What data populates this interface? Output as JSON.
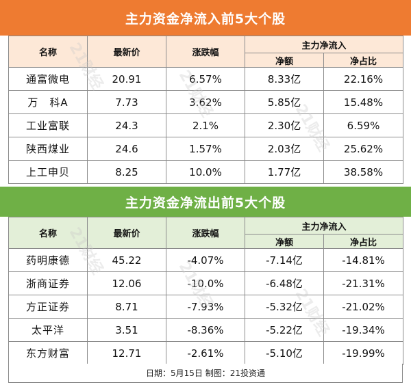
{
  "inflow": {
    "title": "主力资金净流入前5大个股",
    "headers": {
      "name": "名称",
      "price": "最新价",
      "change": "涨跌幅",
      "group": "主力净流入",
      "net": "净额",
      "ratio": "净占比"
    },
    "rows": [
      {
        "name": "通富微电",
        "price": "20.91",
        "change": "6.57%",
        "net": "8.33亿",
        "ratio": "22.16%"
      },
      {
        "name": "万　科A",
        "price": "7.73",
        "change": "3.62%",
        "net": "5.85亿",
        "ratio": "15.48%"
      },
      {
        "name": "工业富联",
        "price": "24.3",
        "change": "2.1%",
        "net": "2.30亿",
        "ratio": "6.59%"
      },
      {
        "name": "陕西煤业",
        "price": "24.6",
        "change": "1.57%",
        "net": "2.03亿",
        "ratio": "25.62%"
      },
      {
        "name": "上工申贝",
        "price": "8.25",
        "change": "10.0%",
        "net": "1.77亿",
        "ratio": "38.58%"
      }
    ]
  },
  "outflow": {
    "title": "主力资金净流出前5大个股",
    "headers": {
      "name": "名称",
      "price": "最新价",
      "change": "涨跌幅",
      "group": "主力净流入",
      "net": "净额",
      "ratio": "净占比"
    },
    "rows": [
      {
        "name": "药明康德",
        "price": "45.22",
        "change": "-4.07%",
        "net": "-7.14亿",
        "ratio": "-14.81%"
      },
      {
        "name": "浙商证券",
        "price": "12.06",
        "change": "-10.0%",
        "net": "-6.48亿",
        "ratio": "-21.31%"
      },
      {
        "name": "方正证券",
        "price": "8.71",
        "change": "-7.93%",
        "net": "-5.32亿",
        "ratio": "-21.02%"
      },
      {
        "name": "太平洋",
        "price": "3.51",
        "change": "-8.36%",
        "net": "-5.22亿",
        "ratio": "-19.34%"
      },
      {
        "name": "东方财富",
        "price": "12.71",
        "change": "-2.61%",
        "net": "-5.10亿",
        "ratio": "-19.99%"
      }
    ]
  },
  "footer": "日期：5月15日 制图：21投资通",
  "watermark": "21财经",
  "colors": {
    "inflow_banner": "#ee7b31",
    "inflow_header": "#fde8d7",
    "outflow_banner": "#6fb046",
    "outflow_header": "#e3efd8"
  }
}
